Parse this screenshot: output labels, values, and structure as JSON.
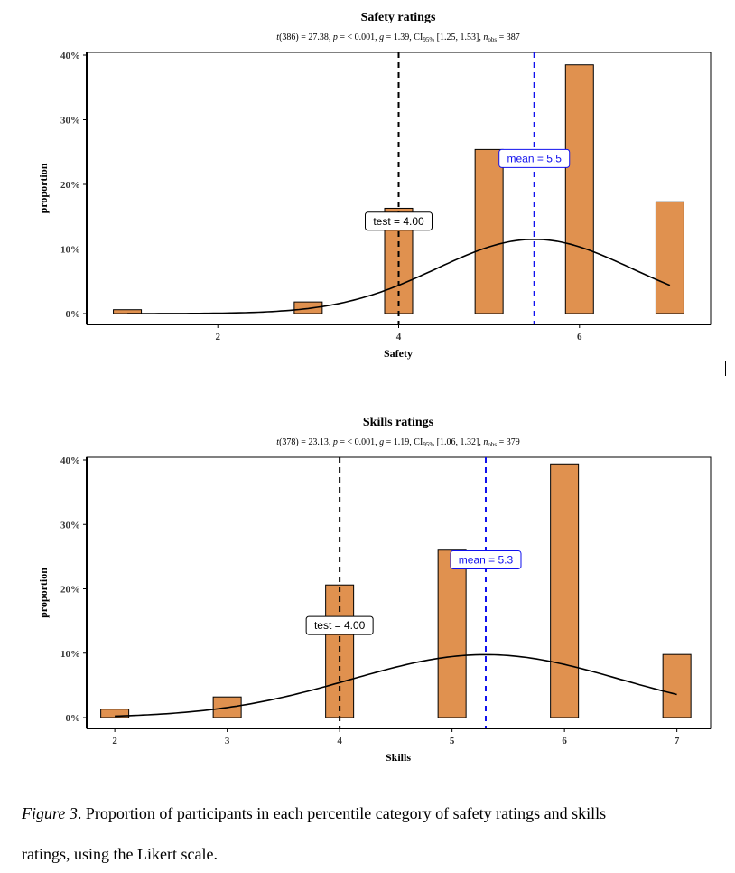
{
  "charts": [
    {
      "title": "Safety ratings",
      "subtitle": "t(386) = 27.38, p = < 0.001, g = 1.39, CI95% [1.25, 1.53], nobs = 387",
      "subtitle_parts": {
        "t_df": "386",
        "t_val": "27.38",
        "p": "< 0.001",
        "g": "1.39",
        "ci_sub": "95%",
        "ci": "[1.25, 1.53]",
        "n_sub": "obs",
        "n": "387"
      },
      "xlabel": "Safety",
      "ylabel": "proportion",
      "test_label": "test = 4.00",
      "mean_label": "mean = 5.5"
    },
    {
      "title": "Skills ratings",
      "subtitle": "t(378) = 23.13, p = < 0.001, g = 1.19, CI95% [1.06, 1.32], nobs = 379",
      "subtitle_parts": {
        "t_df": "378",
        "t_val": "23.13",
        "p": "< 0.001",
        "g": "1.19",
        "ci_sub": "95%",
        "ci": "[1.06, 1.32]",
        "n_sub": "obs",
        "n": "379"
      },
      "xlabel": "Skills",
      "ylabel": "proportion",
      "test_label": "test = 4.00",
      "mean_label": "mean = 5.3"
    }
  ],
  "chart_data": [
    {
      "type": "bar",
      "title": "Safety ratings",
      "xlabel": "Safety",
      "ylabel": "proportion",
      "x": [
        1,
        2,
        3,
        4,
        5,
        6,
        7
      ],
      "values": [
        0.006,
        0,
        0.018,
        0.163,
        0.254,
        0.385,
        0.173
      ],
      "xlim": [
        0.55,
        7.45
      ],
      "ylim": [
        0,
        0.42
      ],
      "xticks": [
        "2",
        "4",
        "6"
      ],
      "xtick_values": [
        2,
        4,
        6
      ],
      "yticks": [
        "0%",
        "10%",
        "20%",
        "30%",
        "40%"
      ],
      "ytick_values": [
        0,
        0.1,
        0.2,
        0.3,
        0.4
      ],
      "normal_curve": {
        "mean": 5.5,
        "sd": 1.08,
        "x_from": 1,
        "x_to": 7
      },
      "test_value": 4.0,
      "mean_value": 5.5,
      "bar_color": "#e0914f",
      "test_line_color": "#000000",
      "mean_line_color": "#1010ee",
      "grid": false
    },
    {
      "type": "bar",
      "title": "Skills ratings",
      "xlabel": "Skills",
      "ylabel": "proportion",
      "x": [
        2,
        3,
        4,
        5,
        6,
        7
      ],
      "values": [
        0.013,
        0.032,
        0.206,
        0.26,
        0.394,
        0.098
      ],
      "xlim": [
        1.75,
        7.3
      ],
      "ylim": [
        0,
        0.42
      ],
      "xticks": [
        "2",
        "3",
        "4",
        "5",
        "6",
        "7"
      ],
      "xtick_values": [
        2,
        3,
        4,
        5,
        6,
        7
      ],
      "yticks": [
        "0%",
        "10%",
        "20%",
        "30%",
        "40%"
      ],
      "ytick_values": [
        0,
        0.1,
        0.2,
        0.3,
        0.4
      ],
      "normal_curve": {
        "mean": 5.3,
        "sd": 1.2,
        "x_from": 2,
        "x_to": 7
      },
      "test_value": 4.0,
      "mean_value": 5.3,
      "bar_color": "#e0914f",
      "test_line_color": "#000000",
      "mean_line_color": "#1010ee",
      "grid": false
    }
  ],
  "caption": {
    "figure_label": "Figure 3",
    "line1_rest": ". Proportion of participants in each percentile category of safety ratings and skills",
    "line2": "ratings, using the Likert scale."
  }
}
